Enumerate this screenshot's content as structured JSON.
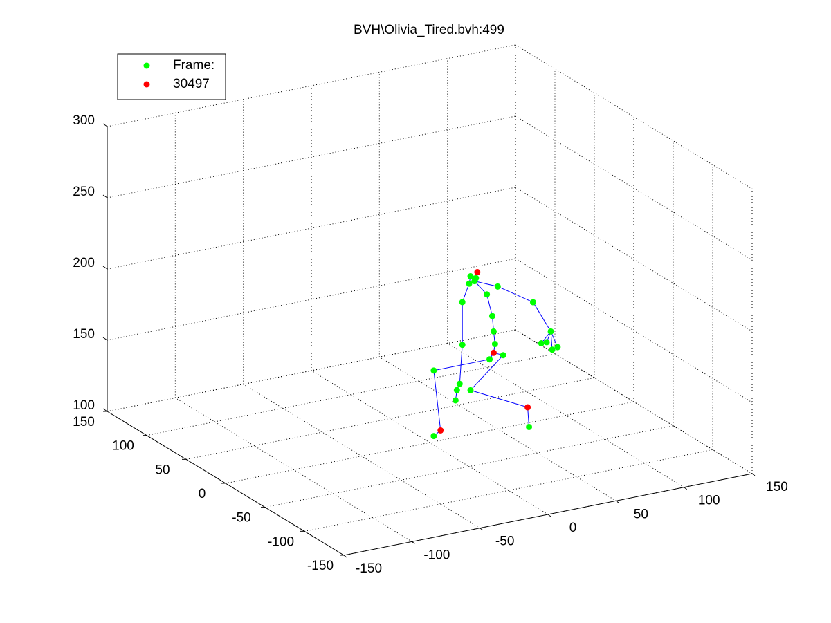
{
  "chart_data": {
    "type": "scatter3d",
    "title": "BVH\\Olivia_Tired.bvh:499",
    "xlim": [
      -150,
      150
    ],
    "xticks": [
      -150,
      -100,
      -50,
      0,
      50,
      100,
      150
    ],
    "ylim": [
      -150,
      150
    ],
    "yticks": [
      -150,
      -100,
      -50,
      0,
      50,
      100,
      150
    ],
    "zlim": [
      100,
      300
    ],
    "zticks": [
      100,
      150,
      200,
      250,
      300
    ],
    "grid": true,
    "legend": "upper left",
    "series": [
      {
        "name": "Frame:",
        "color": "#00ff00",
        "x": [
          30,
          34,
          33,
          29,
          42,
          46,
          47,
          48,
          54,
          44,
          3,
          3,
          30,
          73,
          24,
          24,
          22,
          20,
          19,
          50,
          76,
          89,
          90,
          86,
          82,
          94
        ],
        "y": [
          0,
          0,
          0,
          0,
          0,
          0,
          0,
          0,
          0,
          0,
          0,
          0,
          0,
          0,
          0,
          0,
          0,
          0,
          0,
          0,
          0,
          0,
          0,
          0,
          0,
          0
        ],
        "z": [
          211,
          209,
          207,
          206,
          196,
          180,
          169,
          160,
          151,
          150,
          150,
          104,
          131,
          97,
          194,
          164,
          137,
          133,
          126,
          200,
          184,
          161,
          148,
          154,
          154,
          149
        ]
      },
      {
        "name": "30497",
        "color": "#ff0000",
        "x": [
          35,
          47,
          8,
          72
        ],
        "y": [
          0,
          0,
          0,
          0
        ],
        "z": [
          213,
          154,
          107,
          111
        ]
      }
    ],
    "bones": {
      "color": "#0000ff",
      "edges": [
        [
          27,
          7
        ],
        [
          7,
          6
        ],
        [
          6,
          5
        ],
        [
          5,
          4
        ],
        [
          4,
          2
        ],
        [
          2,
          1
        ],
        [
          1,
          26
        ],
        [
          2,
          0
        ],
        [
          0,
          3
        ],
        [
          27,
          9
        ],
        [
          9,
          10
        ],
        [
          10,
          28
        ],
        [
          28,
          11
        ],
        [
          27,
          8
        ],
        [
          8,
          12
        ],
        [
          12,
          29
        ],
        [
          29,
          13
        ],
        [
          3,
          14
        ],
        [
          14,
          15
        ],
        [
          15,
          16
        ],
        [
          16,
          17
        ],
        [
          17,
          18
        ],
        [
          2,
          19
        ],
        [
          19,
          20
        ],
        [
          20,
          21
        ],
        [
          21,
          22
        ],
        [
          21,
          23
        ],
        [
          21,
          24
        ],
        [
          21,
          25
        ]
      ]
    }
  }
}
